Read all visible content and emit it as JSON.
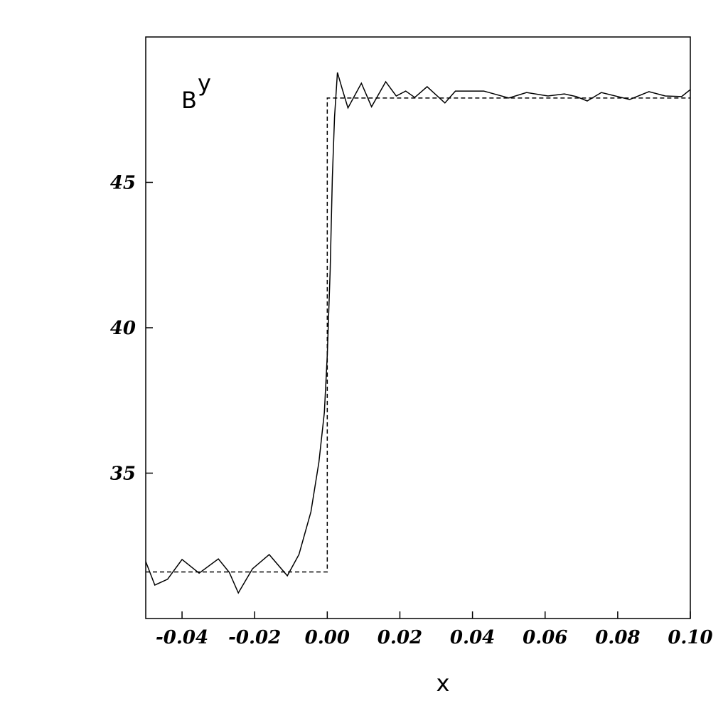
{
  "chart_data": {
    "type": "line",
    "annotation": {
      "text": "B",
      "superscript": "y"
    },
    "xlabel": "x",
    "xlim": [
      -0.05,
      0.1
    ],
    "ylim": [
      30,
      50
    ],
    "xticks": [
      -0.04,
      -0.02,
      {
        "value": 0,
        "label": "0.00"
      },
      0.02,
      0.04,
      0.06,
      0.08,
      {
        "value": 0.1,
        "label": "0.10"
      }
    ],
    "yticks": [
      35,
      40,
      45
    ],
    "series": [
      {
        "color": "#000000",
        "linestyle": "solid",
        "x": [
          -0.05,
          -0.0475,
          -0.044,
          -0.04,
          -0.0353,
          -0.03,
          -0.027,
          -0.0245,
          -0.0206,
          -0.016,
          -0.011,
          -0.0078,
          -0.0045,
          -0.0023,
          -0.0008,
          0.0,
          0.0008,
          0.0014,
          0.002,
          0.0028,
          0.0041,
          0.0057,
          0.0094,
          0.0122,
          0.0161,
          0.019,
          0.0216,
          0.0241,
          0.0275,
          0.0324,
          0.0353,
          0.0431,
          0.05,
          0.0549,
          0.0608,
          0.0653,
          0.0686,
          0.0716,
          0.0755,
          0.0833,
          0.0886,
          0.0931,
          0.0976,
          0.1
        ],
        "values": [
          31.96,
          31.15,
          31.35,
          32.03,
          31.56,
          32.05,
          31.59,
          30.88,
          31.71,
          32.2,
          31.47,
          32.2,
          33.67,
          35.38,
          37.09,
          39.05,
          41.98,
          45.16,
          47.24,
          48.78,
          48.22,
          47.56,
          48.41,
          47.6,
          48.46,
          47.97,
          48.14,
          47.92,
          48.29,
          47.73,
          48.14,
          48.14,
          47.9,
          48.09,
          47.97,
          48.04,
          47.95,
          47.8,
          48.09,
          47.85,
          48.12,
          47.97,
          47.95,
          48.19
        ]
      },
      {
        "color": "#000000",
        "linestyle": "dashed",
        "x": [
          -0.05,
          0,
          0,
          0.1
        ],
        "values": [
          31.6,
          31.6,
          47.9,
          47.9
        ]
      }
    ]
  }
}
